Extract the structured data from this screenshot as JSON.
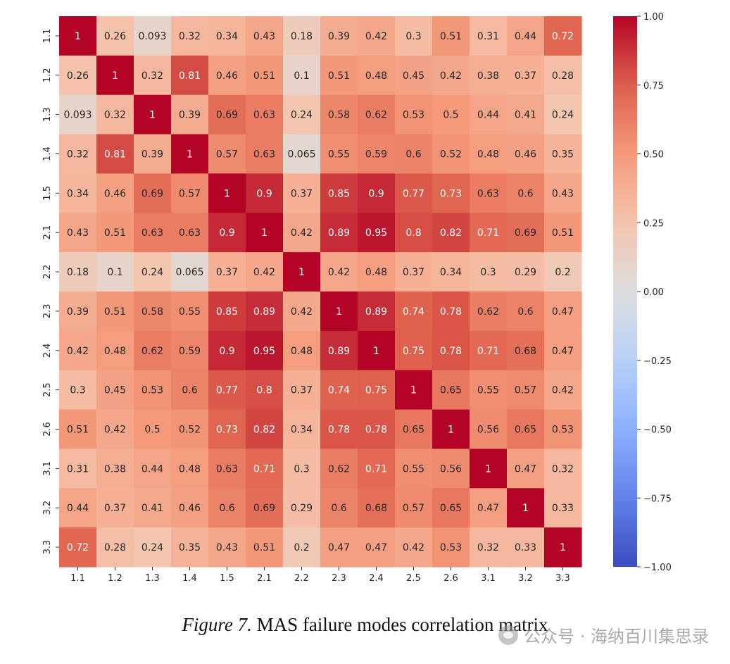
{
  "caption": {
    "figure_label": "Figure 7.",
    "text": "MAS failure modes correlation matrix"
  },
  "watermark": {
    "text": "公众号 · 海纳百川集思录"
  },
  "chart_data": {
    "type": "heatmap",
    "title": "",
    "xlabel": "",
    "ylabel": "",
    "labels": [
      "1.1",
      "1.2",
      "1.3",
      "1.4",
      "1.5",
      "2.1",
      "2.2",
      "2.3",
      "2.4",
      "2.5",
      "2.6",
      "3.1",
      "3.2",
      "3.3"
    ],
    "matrix": [
      [
        1,
        0.26,
        0.093,
        0.32,
        0.34,
        0.43,
        0.18,
        0.39,
        0.42,
        0.3,
        0.51,
        0.31,
        0.44,
        0.72
      ],
      [
        0.26,
        1,
        0.32,
        0.81,
        0.46,
        0.51,
        0.1,
        0.51,
        0.48,
        0.45,
        0.42,
        0.38,
        0.37,
        0.28
      ],
      [
        0.093,
        0.32,
        1,
        0.39,
        0.69,
        0.63,
        0.24,
        0.58,
        0.62,
        0.53,
        0.5,
        0.44,
        0.41,
        0.24
      ],
      [
        0.32,
        0.81,
        0.39,
        1,
        0.57,
        0.63,
        0.065,
        0.55,
        0.59,
        0.6,
        0.52,
        0.48,
        0.46,
        0.35
      ],
      [
        0.34,
        0.46,
        0.69,
        0.57,
        1,
        0.9,
        0.37,
        0.85,
        0.9,
        0.77,
        0.73,
        0.63,
        0.6,
        0.43
      ],
      [
        0.43,
        0.51,
        0.63,
        0.63,
        0.9,
        1,
        0.42,
        0.89,
        0.95,
        0.8,
        0.82,
        0.71,
        0.69,
        0.51
      ],
      [
        0.18,
        0.1,
        0.24,
        0.065,
        0.37,
        0.42,
        1,
        0.42,
        0.48,
        0.37,
        0.34,
        0.3,
        0.29,
        0.2
      ],
      [
        0.39,
        0.51,
        0.58,
        0.55,
        0.85,
        0.89,
        0.42,
        1,
        0.89,
        0.74,
        0.78,
        0.62,
        0.6,
        0.47
      ],
      [
        0.42,
        0.48,
        0.62,
        0.59,
        0.9,
        0.95,
        0.48,
        0.89,
        1,
        0.75,
        0.78,
        0.71,
        0.68,
        0.47
      ],
      [
        0.3,
        0.45,
        0.53,
        0.6,
        0.77,
        0.8,
        0.37,
        0.74,
        0.75,
        1,
        0.65,
        0.55,
        0.57,
        0.42
      ],
      [
        0.51,
        0.42,
        0.5,
        0.52,
        0.73,
        0.82,
        0.34,
        0.78,
        0.78,
        0.65,
        1,
        0.56,
        0.65,
        0.53
      ],
      [
        0.31,
        0.38,
        0.44,
        0.48,
        0.63,
        0.71,
        0.3,
        0.62,
        0.71,
        0.55,
        0.56,
        1,
        0.47,
        0.32
      ],
      [
        0.44,
        0.37,
        0.41,
        0.46,
        0.6,
        0.69,
        0.29,
        0.6,
        0.68,
        0.57,
        0.65,
        0.47,
        1,
        0.33
      ],
      [
        0.72,
        0.28,
        0.24,
        0.35,
        0.43,
        0.51,
        0.2,
        0.47,
        0.47,
        0.42,
        0.53,
        0.32,
        0.33,
        1
      ]
    ],
    "colormap": "coolwarm",
    "colorbar": {
      "min": -1.0,
      "max": 1.0,
      "ticks": [
        1.0,
        0.75,
        0.5,
        0.25,
        0.0,
        -0.25,
        -0.5,
        -0.75,
        -1.0
      ],
      "tick_labels": [
        "1.00",
        "0.75",
        "0.50",
        "0.25",
        "0.00",
        "−0.25",
        "−0.50",
        "−0.75",
        "−1.00"
      ]
    },
    "colors": {
      "low": "#3b4cc0",
      "mid": "#dddddd",
      "high": "#b40426"
    }
  }
}
